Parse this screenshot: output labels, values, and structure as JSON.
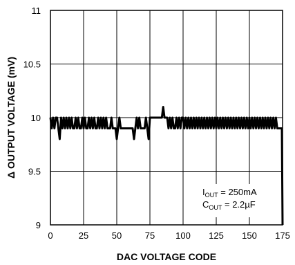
{
  "chart_data": {
    "type": "line",
    "xlabel": "DAC VOLTAGE CODE",
    "ylabel": "Δ OUTPUT VOLTAGE (mV)",
    "xlim": [
      0,
      175
    ],
    "ylim": [
      9,
      11
    ],
    "x_ticks": [
      "0",
      "25",
      "50",
      "75",
      "100",
      "125",
      "150",
      "175"
    ],
    "y_ticks": [
      "9",
      "9.5",
      "10",
      "10.5",
      "11"
    ],
    "grid": true,
    "legend": "none",
    "line_color": "#000000",
    "annotation": {
      "line1": {
        "main": "I",
        "sub": "OUT",
        "rest": " = 250mA"
      },
      "line2": {
        "main": "C",
        "sub": "OUT",
        "rest": " = 2.2µF"
      }
    },
    "series": [
      {
        "values": [
          [
            0,
            10.0
          ],
          [
            1,
            9.9
          ],
          [
            2,
            10.0
          ],
          [
            3,
            9.9
          ],
          [
            4,
            10.0
          ],
          [
            5,
            10.0
          ],
          [
            6,
            9.9
          ],
          [
            7,
            9.8
          ],
          [
            8,
            10.0
          ],
          [
            9,
            9.9
          ],
          [
            10,
            10.0
          ],
          [
            11,
            9.9
          ],
          [
            12,
            10.0
          ],
          [
            13,
            9.9
          ],
          [
            14,
            10.0
          ],
          [
            15,
            9.9
          ],
          [
            16,
            10.0
          ],
          [
            17,
            9.9
          ],
          [
            18,
            9.9
          ],
          [
            19,
            10.0
          ],
          [
            20,
            9.9
          ],
          [
            21,
            10.0
          ],
          [
            22,
            9.9
          ],
          [
            23,
            9.9
          ],
          [
            24,
            10.0
          ],
          [
            25,
            9.9
          ],
          [
            26,
            10.0
          ],
          [
            27,
            9.9
          ],
          [
            28,
            9.9
          ],
          [
            29,
            10.0
          ],
          [
            30,
            9.9
          ],
          [
            31,
            10.0
          ],
          [
            32,
            9.9
          ],
          [
            33,
            10.0
          ],
          [
            34,
            9.9
          ],
          [
            35,
            9.9
          ],
          [
            36,
            10.0
          ],
          [
            37,
            9.9
          ],
          [
            38,
            10.0
          ],
          [
            39,
            9.9
          ],
          [
            40,
            10.0
          ],
          [
            41,
            9.9
          ],
          [
            42,
            10.0
          ],
          [
            43,
            9.9
          ],
          [
            44,
            9.9
          ],
          [
            45,
            9.9
          ],
          [
            46,
            10.0
          ],
          [
            47,
            9.9
          ],
          [
            48,
            9.9
          ],
          [
            49,
            9.9
          ],
          [
            50,
            9.8
          ],
          [
            51,
            9.9
          ],
          [
            52,
            10.0
          ],
          [
            53,
            9.9
          ],
          [
            54,
            9.9
          ],
          [
            55,
            9.9
          ],
          [
            56,
            9.9
          ],
          [
            57,
            9.9
          ],
          [
            58,
            9.9
          ],
          [
            59,
            9.9
          ],
          [
            60,
            9.9
          ],
          [
            61,
            9.9
          ],
          [
            62,
            9.9
          ],
          [
            63,
            9.8
          ],
          [
            64,
            9.9
          ],
          [
            65,
            10.0
          ],
          [
            66,
            9.9
          ],
          [
            67,
            10.0
          ],
          [
            68,
            9.9
          ],
          [
            69,
            9.9
          ],
          [
            70,
            9.9
          ],
          [
            71,
            9.9
          ],
          [
            72,
            10.0
          ],
          [
            73,
            9.9
          ],
          [
            74,
            9.8
          ],
          [
            75,
            10.0
          ],
          [
            76,
            10.0
          ],
          [
            77,
            10.0
          ],
          [
            78,
            10.0
          ],
          [
            79,
            10.0
          ],
          [
            80,
            10.0
          ],
          [
            81,
            10.0
          ],
          [
            82,
            10.0
          ],
          [
            83,
            10.0
          ],
          [
            84,
            10.0
          ],
          [
            85,
            10.1
          ],
          [
            86,
            10.0
          ],
          [
            87,
            10.0
          ],
          [
            88,
            10.0
          ],
          [
            89,
            9.9
          ],
          [
            90,
            10.0
          ],
          [
            91,
            9.9
          ],
          [
            92,
            10.0
          ],
          [
            93,
            9.9
          ],
          [
            94,
            9.9
          ],
          [
            95,
            10.0
          ],
          [
            96,
            9.9
          ],
          [
            97,
            10.0
          ],
          [
            98,
            9.9
          ],
          [
            99,
            10.0
          ],
          [
            100,
            10.0
          ],
          [
            101,
            9.9
          ],
          [
            102,
            10.0
          ],
          [
            103,
            9.9
          ],
          [
            104,
            10.0
          ],
          [
            105,
            9.9
          ],
          [
            106,
            10.0
          ],
          [
            107,
            9.9
          ],
          [
            108,
            10.0
          ],
          [
            109,
            9.9
          ],
          [
            110,
            10.0
          ],
          [
            111,
            9.9
          ],
          [
            112,
            10.0
          ],
          [
            113,
            9.9
          ],
          [
            114,
            10.0
          ],
          [
            115,
            9.9
          ],
          [
            116,
            10.0
          ],
          [
            117,
            9.9
          ],
          [
            118,
            10.0
          ],
          [
            119,
            9.9
          ],
          [
            120,
            10.0
          ],
          [
            121,
            9.9
          ],
          [
            122,
            10.0
          ],
          [
            123,
            9.9
          ],
          [
            124,
            10.0
          ],
          [
            125,
            9.9
          ],
          [
            126,
            10.0
          ],
          [
            127,
            9.9
          ],
          [
            128,
            10.0
          ],
          [
            129,
            9.9
          ],
          [
            130,
            10.0
          ],
          [
            131,
            9.9
          ],
          [
            132,
            10.0
          ],
          [
            133,
            9.9
          ],
          [
            134,
            10.0
          ],
          [
            135,
            9.9
          ],
          [
            136,
            10.0
          ],
          [
            137,
            9.9
          ],
          [
            138,
            10.0
          ],
          [
            139,
            9.9
          ],
          [
            140,
            10.0
          ],
          [
            141,
            9.9
          ],
          [
            142,
            10.0
          ],
          [
            143,
            9.9
          ],
          [
            144,
            10.0
          ],
          [
            145,
            9.9
          ],
          [
            146,
            10.0
          ],
          [
            147,
            9.9
          ],
          [
            148,
            10.0
          ],
          [
            149,
            9.9
          ],
          [
            150,
            10.0
          ],
          [
            151,
            9.9
          ],
          [
            152,
            10.0
          ],
          [
            153,
            9.9
          ],
          [
            154,
            10.0
          ],
          [
            155,
            9.9
          ],
          [
            156,
            10.0
          ],
          [
            157,
            9.9
          ],
          [
            158,
            10.0
          ],
          [
            159,
            9.9
          ],
          [
            160,
            10.0
          ],
          [
            161,
            9.9
          ],
          [
            162,
            10.0
          ],
          [
            163,
            9.9
          ],
          [
            164,
            10.0
          ],
          [
            165,
            9.9
          ],
          [
            166,
            10.0
          ],
          [
            167,
            9.9
          ],
          [
            168,
            10.0
          ],
          [
            169,
            9.9
          ],
          [
            170,
            10.0
          ],
          [
            171,
            9.9
          ],
          [
            172,
            9.9
          ],
          [
            173,
            9.9
          ],
          [
            174,
            9.9
          ],
          [
            174.5,
            9.9
          ],
          [
            175,
            9.0
          ]
        ]
      }
    ]
  }
}
